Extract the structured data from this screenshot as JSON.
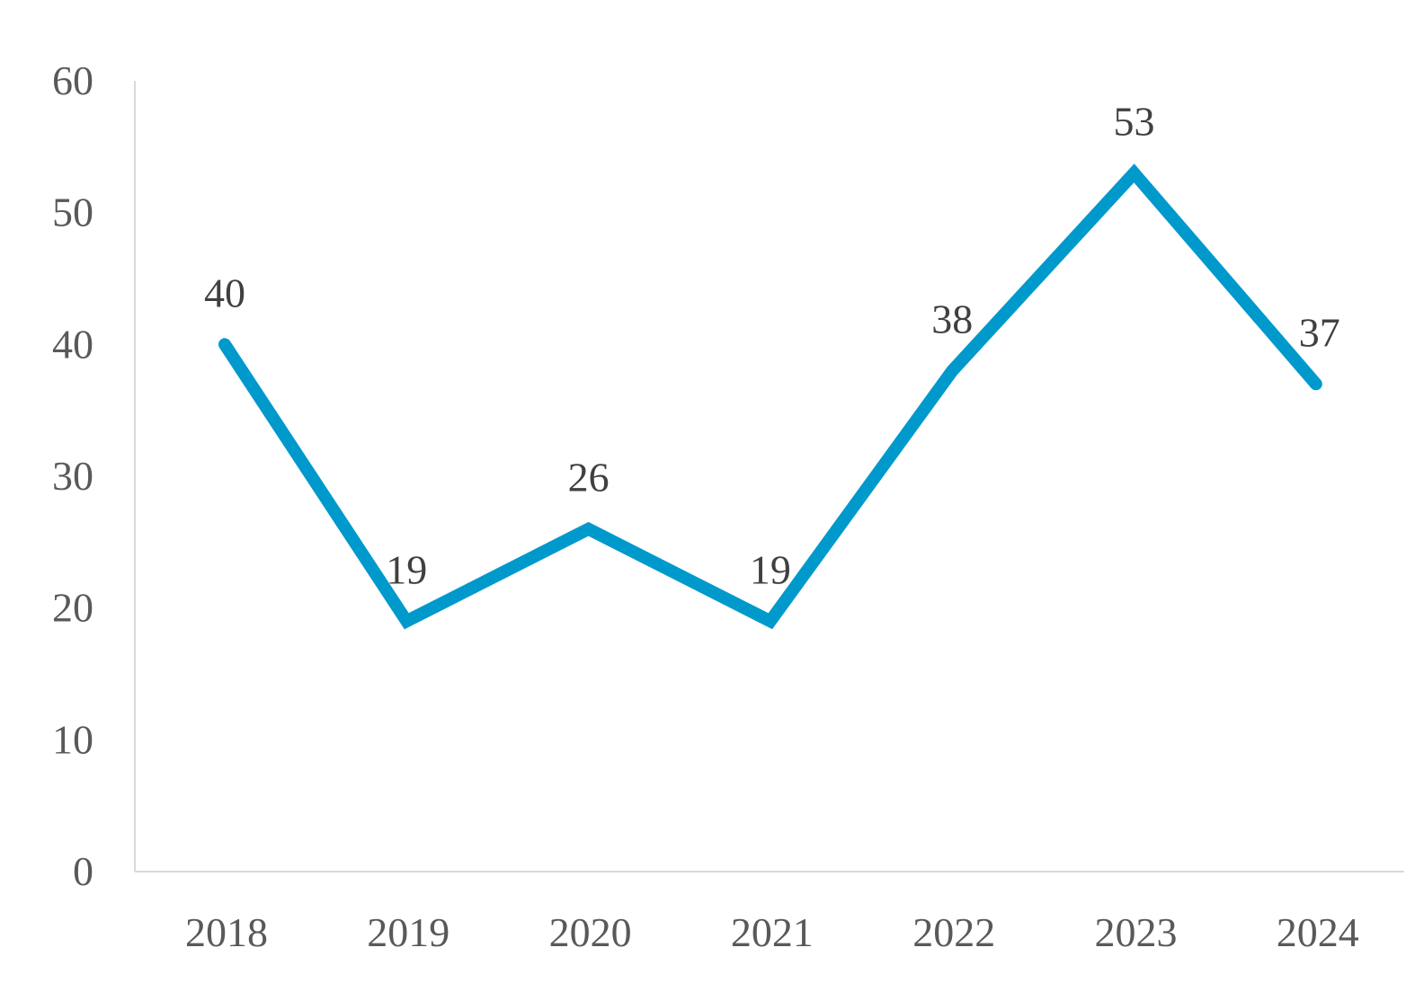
{
  "chart_data": {
    "type": "line",
    "categories": [
      "2018",
      "2019",
      "2020",
      "2021",
      "2022",
      "2023",
      "2024"
    ],
    "series": [
      {
        "values": [
          40,
          19,
          26,
          19,
          38,
          53,
          37
        ],
        "color": "#0099CC"
      }
    ],
    "data_labels": [
      "40",
      "19",
      "26",
      "19",
      "38",
      "53",
      "37"
    ],
    "y_ticks": [
      "0",
      "10",
      "20",
      "30",
      "40",
      "50",
      "60"
    ],
    "ylim": [
      0,
      60
    ],
    "grid": false,
    "legend": "none"
  }
}
